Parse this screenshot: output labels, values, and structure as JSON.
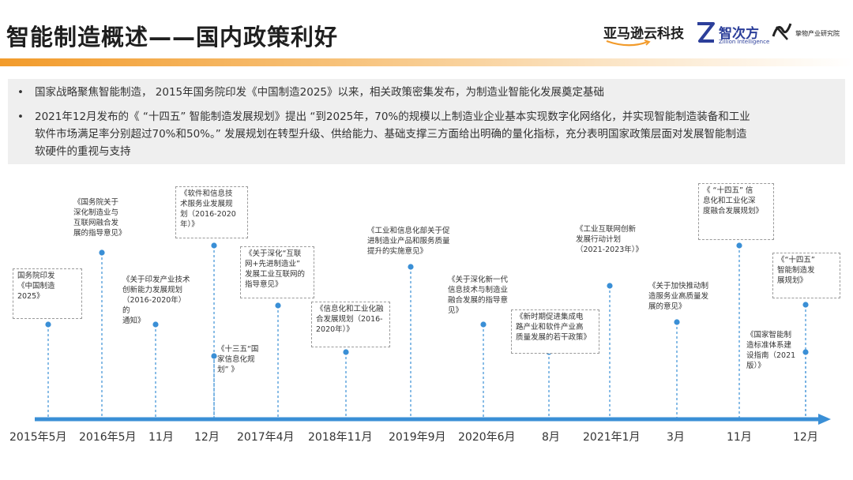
{
  "header": {
    "title": "智能制造概述——国内政策利好",
    "logos": {
      "amazon": "亚马逊云科技",
      "zhicifang": "智次方",
      "zhicifang_sub": "Zillion Intelligence",
      "huazhang": "挚物产业研究院"
    }
  },
  "summary": {
    "bullets": [
      {
        "lines": [
          "国家战略聚焦智能制造， 2015年国务院印发《中国制造2025》以来，相关政策密集发布，为制造业智能化发展奠定基础"
        ]
      },
      {
        "lines": [
          "2021年12月发布的《 “十四五” 智能制造发展规划》提出 “到2025年，70%的规模以上制造业企业基本实现数字化网络化，并实现智能制造装备和工业",
          "软件市场满足率分别超过70%和50%。” 发展规划在转型升级、供给能力、基础支撑三方面给出明确的量化指标，充分表明国家政策层面对发展智能制造",
          "软硬件的重视与支持"
        ]
      }
    ]
  },
  "timeline": {
    "ticks": [
      "2015年5月",
      "2016年5月",
      "11月",
      "12月",
      "2017年4月",
      "2018年11月",
      "2019年9月",
      "2020年6月",
      "8月",
      "2021年1月",
      "3月",
      "11月",
      "12月"
    ],
    "events": [
      {
        "text": "国务院印发\n《中国制造\n2025》",
        "boxed": true
      },
      {
        "text": "《国务院关于\n深化制造业与\n互联网融合发\n展的指导意见》",
        "boxed": false
      },
      {
        "text": "《关于印发产业技术\n创新能力发展规划\n（2016-2020年）的\n通知》",
        "boxed": false
      },
      {
        "text": "《软件和信息技\n术服务业发展规\n划（2016-2020\n年）》",
        "boxed": true
      },
      {
        "text": "《十三五“国\n家信息化规\n划” 》",
        "boxed": false
      },
      {
        "text": "《关于深化“互联\n网+先进制造业”\n发展工业互联网的\n指导意见》",
        "boxed": true
      },
      {
        "text": "《信息化和工业化融\n合发展规划（2016-\n2020年）》",
        "boxed": true
      },
      {
        "text": "《工业和信息化部关于促\n进制造业产品和服务质量\n提升的实施意见》",
        "boxed": false
      },
      {
        "text": "《关于深化新一代\n信息技术与制造业\n融合发展的指导意\n见》",
        "boxed": false
      },
      {
        "text": "《新时期促进集成电\n路产业和软件产业高\n质量发展的若干政策》",
        "boxed": true
      },
      {
        "text": "《工业互联网创新\n发展行动计划\n（2021-2023年）》",
        "boxed": false
      },
      {
        "text": "《关于加快推动制\n造服务业高质量发\n展的意见》",
        "boxed": false
      },
      {
        "text": "《 “十四五” 信\n息化和工业化深\n度融合发展规划》",
        "boxed": true
      },
      {
        "text": "《国家智能制\n造标准体系建\n设指南（2021\n版）》",
        "boxed": false
      },
      {
        "text": "《“十四五”\n智能制造发\n展规划》",
        "boxed": true
      }
    ]
  },
  "colors": {
    "accent": "#3a8fd6",
    "title_underline": "#f29b2b"
  }
}
